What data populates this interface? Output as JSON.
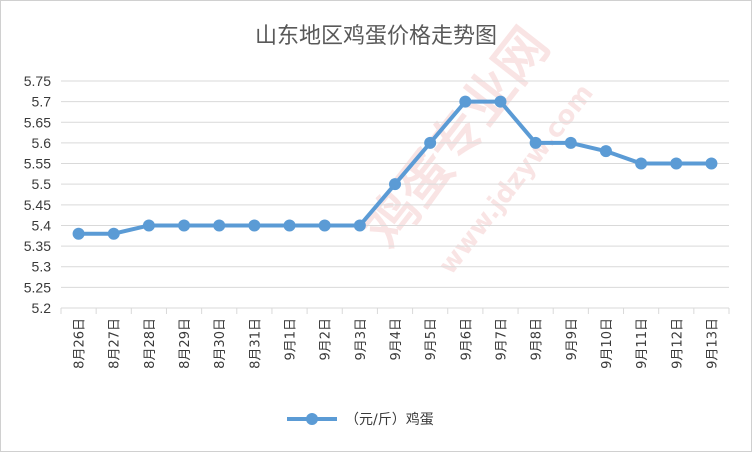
{
  "chart_data": {
    "type": "line",
    "title": "山东地区鸡蛋价格走势图",
    "xlabel": "",
    "ylabel": "",
    "categories": [
      "8月26日",
      "8月27日",
      "8月28日",
      "8月29日",
      "8月30日",
      "8月31日",
      "9月1日",
      "9月2日",
      "9月3日",
      "9月4日",
      "9月5日",
      "9月6日",
      "9月7日",
      "9月8日",
      "9月9日",
      "9月10日",
      "9月11日",
      "9月12日",
      "9月13日"
    ],
    "series": [
      {
        "name": "（元/斤）鸡蛋",
        "color": "#5b9bd5",
        "values": [
          5.38,
          5.38,
          5.4,
          5.4,
          5.4,
          5.4,
          5.4,
          5.4,
          5.4,
          5.5,
          5.6,
          5.7,
          5.7,
          5.6,
          5.6,
          5.58,
          5.55,
          5.55,
          5.55
        ]
      }
    ],
    "ylim": [
      5.2,
      5.75
    ],
    "yticks": [
      "5.2",
      "5.25",
      "5.3",
      "5.35",
      "5.4",
      "5.45",
      "5.5",
      "5.55",
      "5.6",
      "5.65",
      "5.7",
      "5.75"
    ],
    "grid": true,
    "legend_position": "bottom"
  },
  "watermark": {
    "brand": "鸡蛋专业网",
    "url": "www.jdzyw.com"
  }
}
